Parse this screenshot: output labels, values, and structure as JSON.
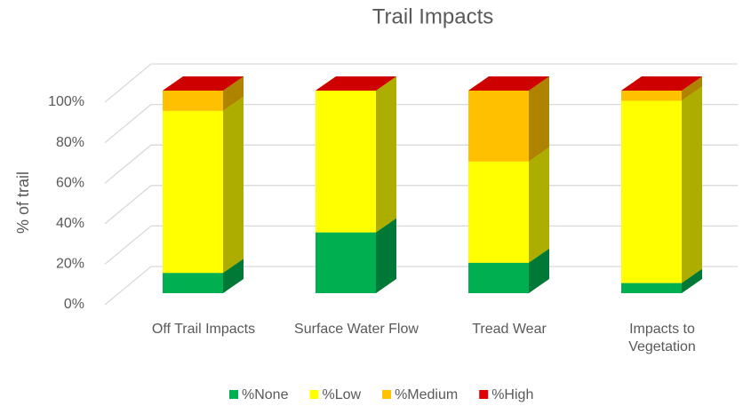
{
  "chart_data": {
    "type": "bar3d_stacked",
    "title": "Trail Impacts",
    "y_label": "% of trail",
    "categories": [
      "Off Trail Impacts",
      "Surface Water Flow",
      "Tread Wear",
      "Impacts to Vegetation"
    ],
    "series": [
      {
        "name": "%None",
        "color": "#00b050",
        "values": [
          10,
          30,
          15,
          5
        ]
      },
      {
        "name": "%Low",
        "color": "#ffff00",
        "values": [
          80,
          70,
          50,
          90
        ]
      },
      {
        "name": "%Medium",
        "color": "#ffc000",
        "values": [
          10,
          0,
          35,
          5
        ]
      },
      {
        "name": "%High",
        "color": "#e00000",
        "values": [
          0,
          0,
          0,
          0
        ]
      }
    ],
    "ylim": [
      0,
      100
    ],
    "yticks": [
      {
        "value": 0,
        "label": "0%"
      },
      {
        "value": 20,
        "label": "20%"
      },
      {
        "value": 40,
        "label": "40%"
      },
      {
        "value": 60,
        "label": "60%"
      },
      {
        "value": 80,
        "label": "80%"
      },
      {
        "value": 100,
        "label": "100%"
      }
    ],
    "grid": true,
    "legend": "bottom"
  }
}
